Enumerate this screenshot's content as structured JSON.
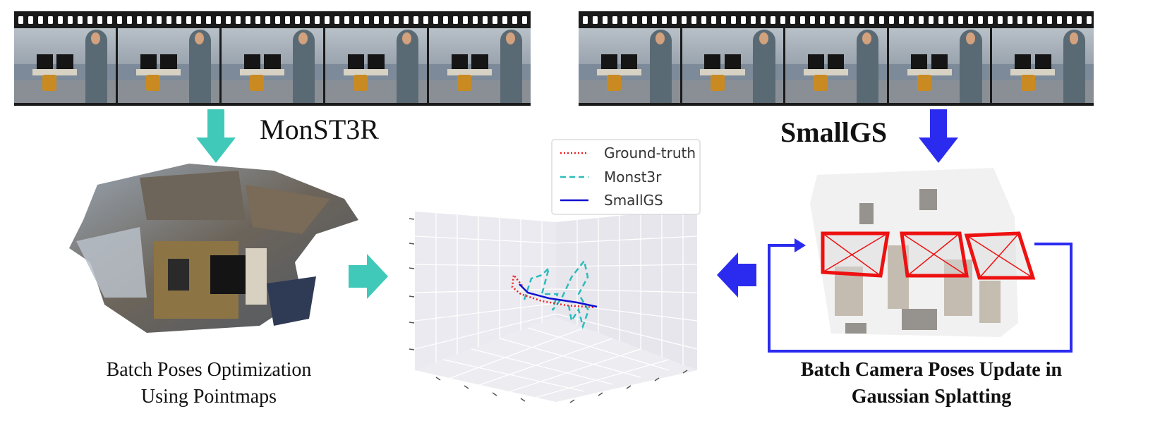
{
  "left_method": {
    "title": "MonST3R",
    "caption_line1": "Batch Poses Optimization",
    "caption_line2": "Using Pointmaps"
  },
  "right_method": {
    "title": "SmallGS",
    "caption_line1": "Batch Camera Poses Update in",
    "caption_line2": "Gaussian Splatting"
  },
  "legend": {
    "ground_truth": "Ground-truth",
    "monst3r": "Monst3r",
    "smallgs": "SmallGS"
  },
  "colors": {
    "teal_arrow": "#40c9b9",
    "blue_arrow": "#2b2bf0",
    "camera_frustum": "#ee1111",
    "ground_truth_line": "#ee2222",
    "monst3r_line": "#2bbcbc",
    "smallgs_line": "#1010d0"
  },
  "icons": {
    "film_strip": "film-strip-icon",
    "down_arrow": "arrow-down-icon",
    "right_arrow": "arrow-right-icon",
    "left_arrow": "arrow-left-icon"
  }
}
